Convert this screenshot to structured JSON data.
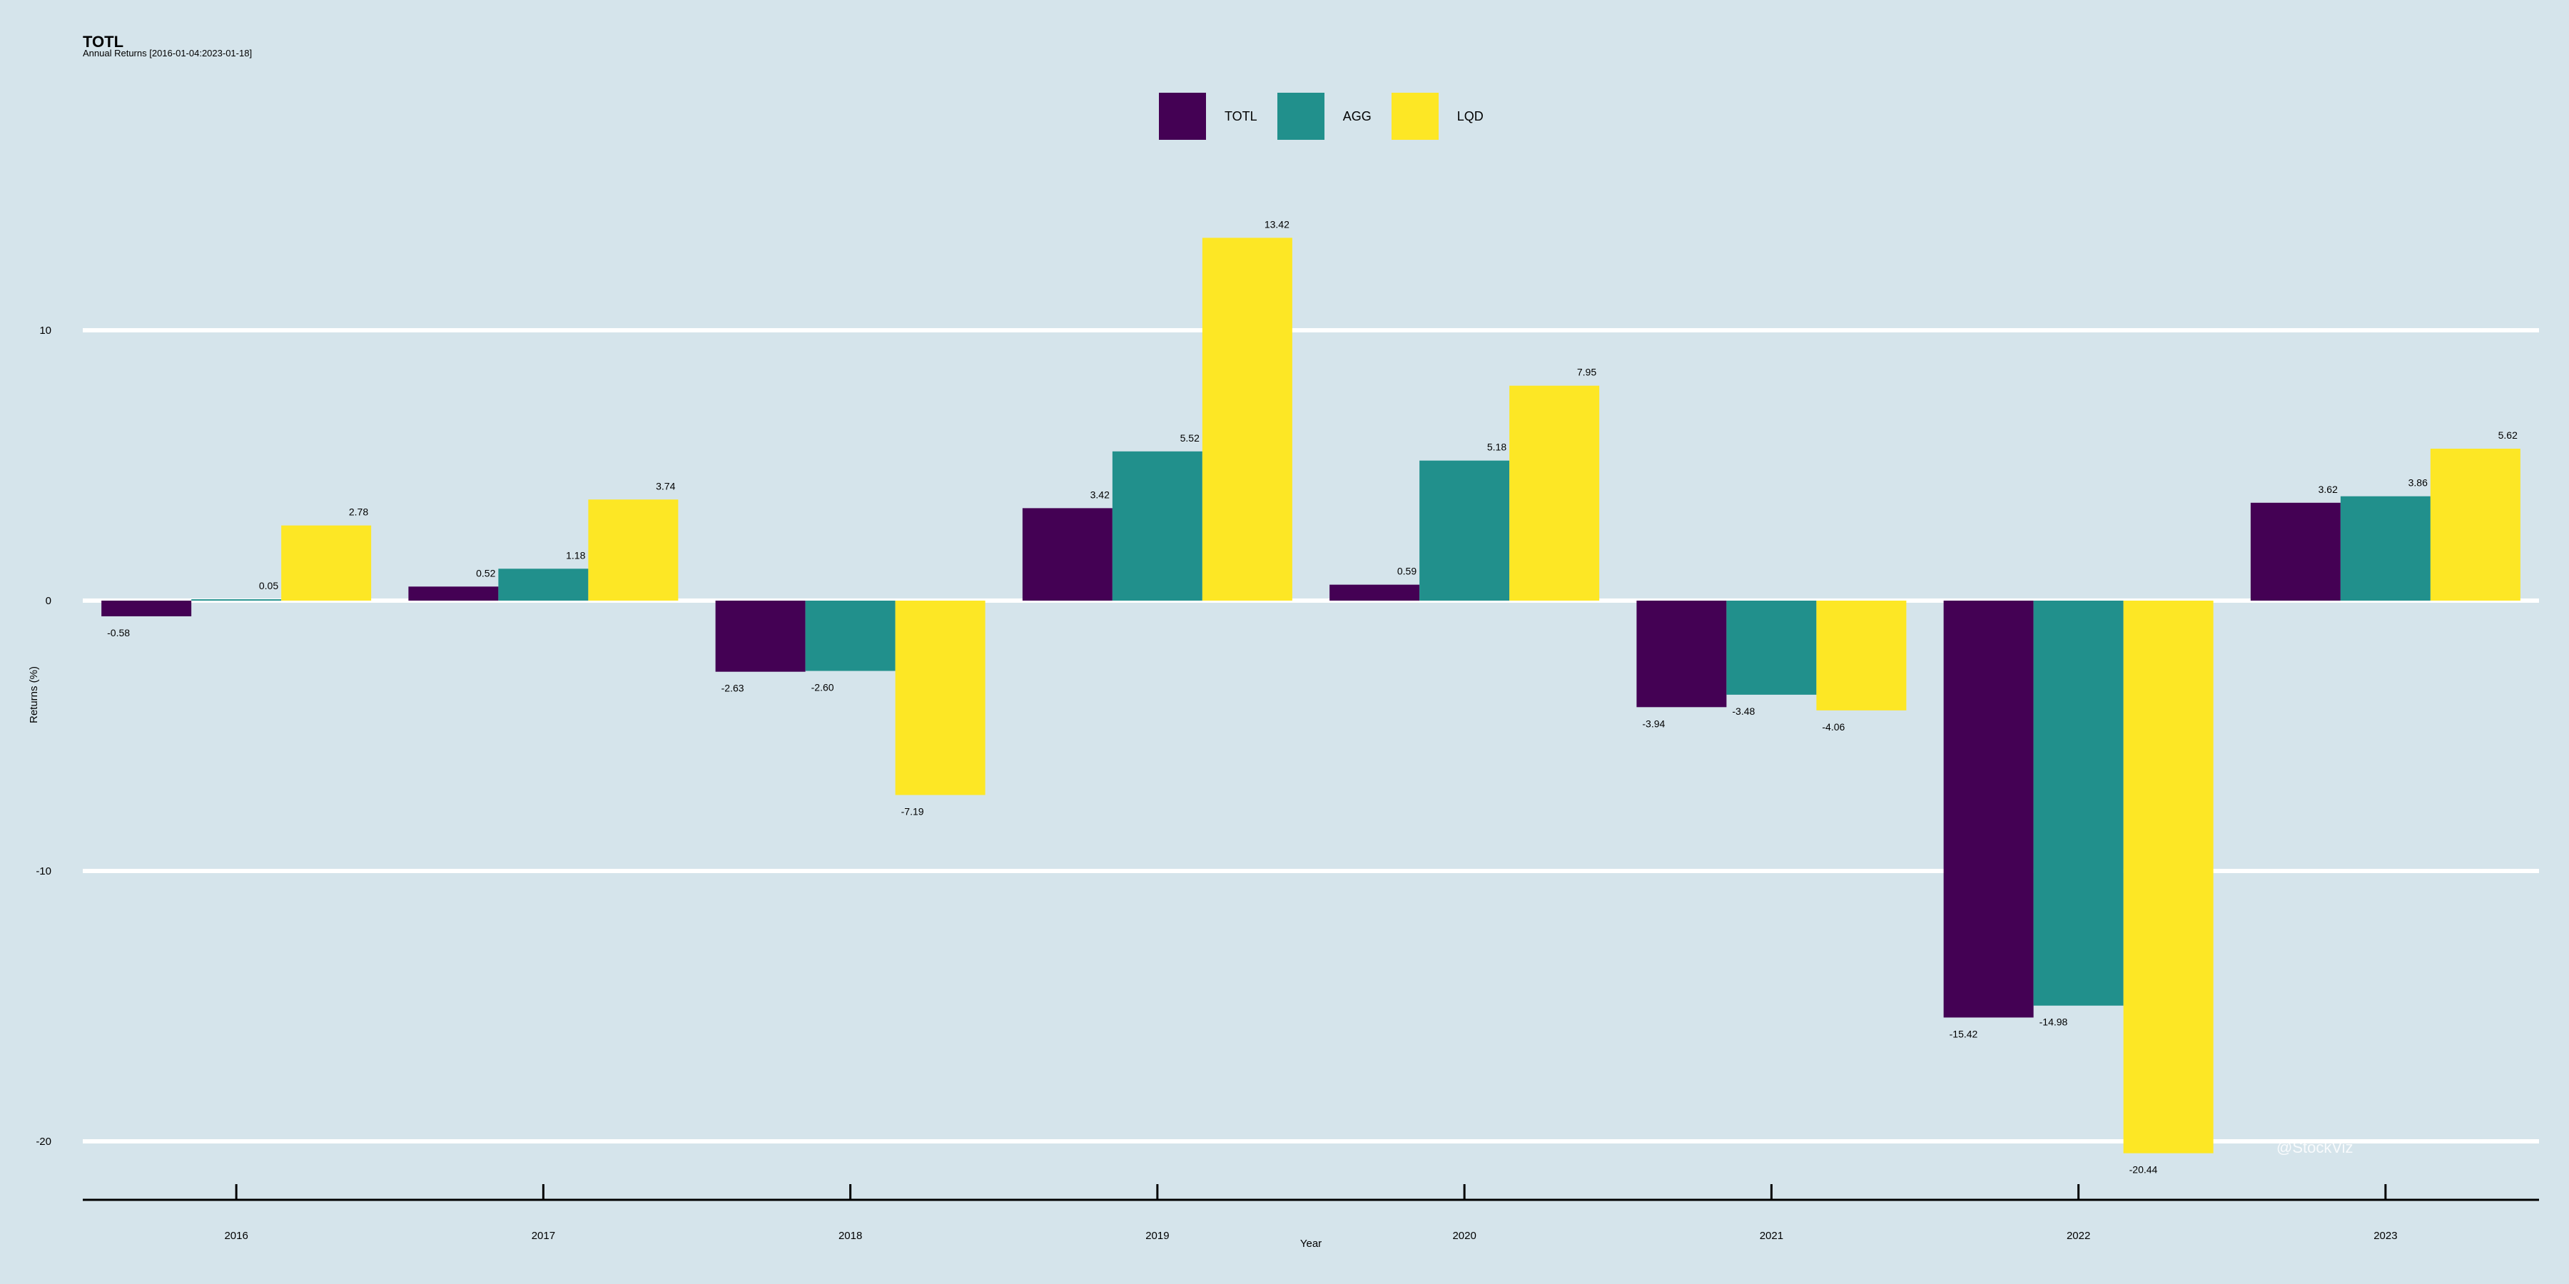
{
  "chart_data": {
    "type": "bar",
    "title": "TOTL",
    "subtitle": "Annual Returns [2016-01-04:2023-01-18]",
    "xlabel": "Year",
    "ylabel": "Returns (%)",
    "categories": [
      "2016",
      "2017",
      "2018",
      "2019",
      "2020",
      "2021",
      "2022",
      "2023"
    ],
    "series": [
      {
        "name": "TOTL",
        "color": "#440154",
        "values": [
          -0.58,
          0.52,
          -2.63,
          3.42,
          0.59,
          -3.94,
          -15.42,
          3.62
        ]
      },
      {
        "name": "AGG",
        "color": "#21908c",
        "values": [
          0.05,
          1.18,
          -2.6,
          5.52,
          5.18,
          -3.48,
          -14.98,
          3.86
        ]
      },
      {
        "name": "LQD",
        "color": "#fde725",
        "values": [
          2.78,
          3.74,
          -7.19,
          13.42,
          7.95,
          -4.06,
          -20.44,
          5.62
        ]
      }
    ],
    "data_labels": [
      [
        "-0.58",
        "0.05",
        "2.78"
      ],
      [
        "0.52",
        "1.18",
        "3.74"
      ],
      [
        "-2.63",
        "-2.60",
        "-7.19"
      ],
      [
        "3.42",
        "5.52",
        "13.42"
      ],
      [
        "0.59",
        "5.18",
        "7.95"
      ],
      [
        "-3.94",
        "-3.48",
        "-4.06"
      ],
      [
        "-15.42",
        "-14.98",
        "-20.44"
      ],
      [
        "3.62",
        "3.86",
        "5.62"
      ]
    ],
    "yticks": [
      -20,
      -10,
      0,
      10
    ],
    "ytick_labels": [
      "-20",
      "-10",
      "0",
      "10"
    ],
    "ylim": [
      -20.44,
      13.42
    ],
    "grid": "horizontal",
    "legend_position": "top-center"
  },
  "watermark": "@StockViz"
}
